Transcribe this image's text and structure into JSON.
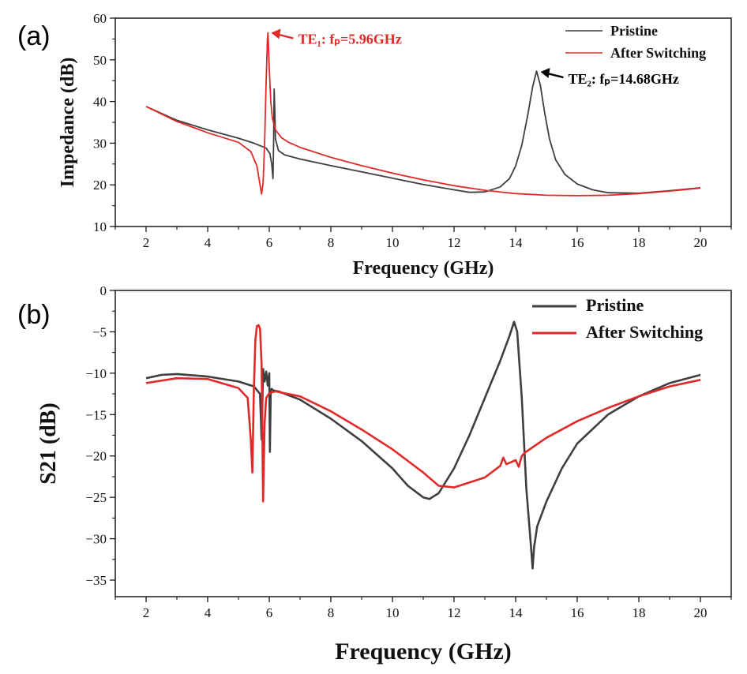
{
  "colors": {
    "pristine": "#3f3f3f",
    "switching": "#e02a2a",
    "axis": "#1a1a1a"
  },
  "chart_data": [
    {
      "type": "line",
      "panel": "(a)",
      "title": "",
      "xlabel": "Frequency (GHz)",
      "ylabel": "Impedance (dB)",
      "xlim": [
        1,
        21
      ],
      "ylim": [
        10,
        60
      ],
      "xticks": [
        2,
        4,
        6,
        8,
        10,
        12,
        14,
        16,
        18,
        20
      ],
      "xtick_labels": [
        "2",
        "4",
        "6",
        "8",
        "10",
        "12",
        "14",
        "16",
        "18",
        "20"
      ],
      "yticks": [
        10,
        20,
        30,
        40,
        50,
        60
      ],
      "ytick_labels": [
        "10",
        "20",
        "30",
        "40",
        "50",
        "60"
      ],
      "legend": [
        "Pristine",
        "After Switching"
      ],
      "legend_position": "top-right",
      "series": [
        {
          "name": "Pristine",
          "x": [
            2,
            3,
            4,
            5,
            5.5,
            5.9,
            6.02,
            6.08,
            6.12,
            6.14,
            6.16,
            6.18,
            6.2,
            6.3,
            6.5,
            7,
            8,
            9,
            10,
            11,
            12,
            12.5,
            13,
            13.5,
            13.8,
            14,
            14.2,
            14.4,
            14.55,
            14.68,
            14.8,
            14.95,
            15.1,
            15.3,
            15.6,
            16,
            16.5,
            17,
            18,
            19,
            20
          ],
          "y": [
            38.8,
            35.5,
            33.2,
            31.2,
            30,
            28.8,
            27.5,
            25,
            21.5,
            30,
            43,
            38,
            31,
            28.2,
            27.2,
            26.2,
            24.6,
            23.1,
            21.6,
            20.1,
            18.8,
            18.2,
            18.3,
            19.5,
            21.5,
            24.5,
            29.5,
            37,
            43.5,
            47.3,
            44,
            37,
            31,
            26,
            22.5,
            20.2,
            18.8,
            18.1,
            18,
            18.6,
            19.3
          ]
        },
        {
          "name": "After Switching",
          "x": [
            2,
            3,
            4,
            5,
            5.4,
            5.6,
            5.7,
            5.75,
            5.8,
            5.85,
            5.9,
            5.94,
            5.96,
            6.0,
            6.05,
            6.1,
            6.2,
            6.4,
            6.6,
            7,
            8,
            9,
            10,
            11,
            12,
            13,
            14,
            15,
            16,
            17,
            18,
            19,
            20
          ],
          "y": [
            38.8,
            35.2,
            32.5,
            30.2,
            28,
            24.5,
            20,
            17.8,
            20.5,
            30,
            45,
            55,
            56.5,
            48,
            40,
            36,
            33.2,
            31.3,
            30.3,
            29,
            26.6,
            24.6,
            22.8,
            21.2,
            19.8,
            18.7,
            17.9,
            17.5,
            17.4,
            17.5,
            17.9,
            18.5,
            19.2
          ]
        }
      ],
      "annotations": [
        {
          "text": "TE₁: fₚ=5.96GHz",
          "color": "#e02a2a",
          "x": 5.96,
          "y": 56.5
        },
        {
          "text": "TE₂: fₚ=14.68GHz",
          "color": "#000000",
          "x": 14.68,
          "y": 47.3
        }
      ]
    },
    {
      "type": "line",
      "panel": "(b)",
      "title": "",
      "xlabel": "Frequency (GHz)",
      "ylabel": "S21 (dB)",
      "xlim": [
        1,
        21
      ],
      "ylim": [
        -37,
        0
      ],
      "xticks": [
        2,
        4,
        6,
        8,
        10,
        12,
        14,
        16,
        18,
        20
      ],
      "xtick_labels": [
        "2",
        "4",
        "6",
        "8",
        "10",
        "12",
        "14",
        "16",
        "18",
        "20"
      ],
      "yticks": [
        0,
        -5,
        -10,
        -15,
        -20,
        -25,
        -30,
        -35
      ],
      "ytick_labels": [
        "0",
        "−5",
        "−10",
        "−15",
        "−20",
        "−25",
        "−30",
        "−35"
      ],
      "legend": [
        "Pristine",
        "After Switching"
      ],
      "legend_position": "top-right",
      "series": [
        {
          "name": "Pristine",
          "x": [
            2,
            2.5,
            3,
            4,
            5,
            5.5,
            5.7,
            5.75,
            5.8,
            5.85,
            5.9,
            5.95,
            6.0,
            6.02,
            6.05,
            6.08,
            6.1,
            6.15,
            6.3,
            7,
            8,
            9,
            10,
            10.5,
            11,
            11.2,
            11.5,
            12,
            12.5,
            13,
            13.5,
            13.8,
            13.95,
            14.05,
            14.2,
            14.35,
            14.5,
            14.55,
            14.6,
            14.7,
            15,
            15.5,
            16,
            17,
            18,
            19,
            20
          ],
          "y": [
            -10.6,
            -10.2,
            -10.1,
            -10.4,
            -11,
            -11.6,
            -12.5,
            -18,
            -9.5,
            -11,
            -9.8,
            -11.5,
            -10,
            -19.5,
            -12,
            -11.9,
            -12,
            -12.1,
            -12.2,
            -13.2,
            -15.5,
            -18.2,
            -21.5,
            -23.6,
            -25,
            -25.2,
            -24.5,
            -21.5,
            -17.5,
            -13,
            -8.5,
            -5.5,
            -3.8,
            -5,
            -13,
            -24,
            -31,
            -33.6,
            -31,
            -28.5,
            -25.5,
            -21.5,
            -18.5,
            -15,
            -12.8,
            -11.2,
            -10.2
          ]
        },
        {
          "name": "After Switching",
          "x": [
            2,
            3,
            4,
            5,
            5.3,
            5.4,
            5.45,
            5.5,
            5.55,
            5.6,
            5.65,
            5.7,
            5.75,
            5.8,
            5.85,
            5.9,
            6.0,
            6.2,
            7,
            8,
            9,
            10,
            10.5,
            11,
            11.5,
            12,
            13,
            13.5,
            13.6,
            13.7,
            14,
            14.1,
            14.2,
            14.3,
            15,
            16,
            17,
            18,
            19,
            20
          ],
          "y": [
            -11.2,
            -10.6,
            -10.7,
            -11.8,
            -13,
            -18,
            -22,
            -12,
            -6,
            -4.3,
            -4.2,
            -4.6,
            -9,
            -25.5,
            -16,
            -13,
            -12.4,
            -12.2,
            -12.8,
            -14.6,
            -16.8,
            -19.2,
            -20.6,
            -22,
            -23.6,
            -23.8,
            -22.6,
            -21.2,
            -20.2,
            -21,
            -20.5,
            -21.3,
            -20,
            -19.6,
            -17.8,
            -15.8,
            -14.2,
            -12.8,
            -11.6,
            -10.8
          ]
        }
      ],
      "annotations": []
    }
  ]
}
